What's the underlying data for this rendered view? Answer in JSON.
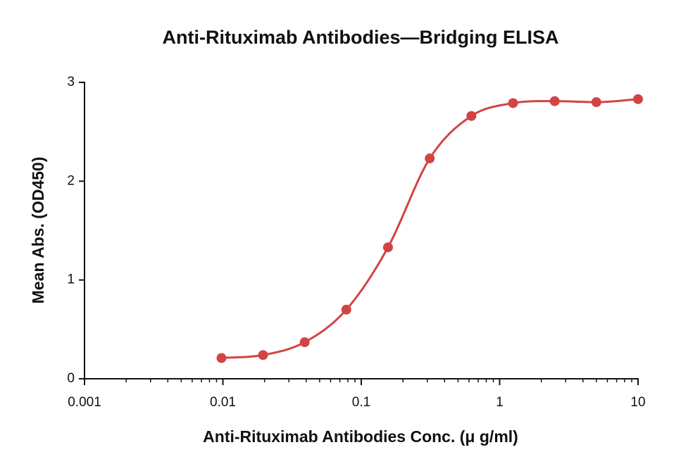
{
  "chart_data": {
    "type": "line",
    "title": "Anti-Rituximab Antibodies—Bridging ELISA",
    "x_label": "Anti-Rituximab Antibodies Conc. (μ g/ml)",
    "y_label": "Mean Abs. (OD450)",
    "x": [
      0.00977,
      0.0195,
      0.039,
      0.078,
      0.156,
      0.3125,
      0.625,
      1.25,
      2.5,
      5,
      10
    ],
    "values": [
      0.21,
      0.24,
      0.37,
      0.7,
      1.33,
      2.23,
      2.66,
      2.79,
      2.81,
      2.8,
      2.83
    ],
    "color": "#d24444",
    "x_scale": "log",
    "xlim": [
      0.001,
      10
    ],
    "xticks": [
      0.001,
      0.01,
      0.1,
      1,
      10
    ],
    "ylim": [
      0,
      3
    ],
    "yticks": [
      0,
      1,
      2,
      3
    ],
    "grid": false
  }
}
